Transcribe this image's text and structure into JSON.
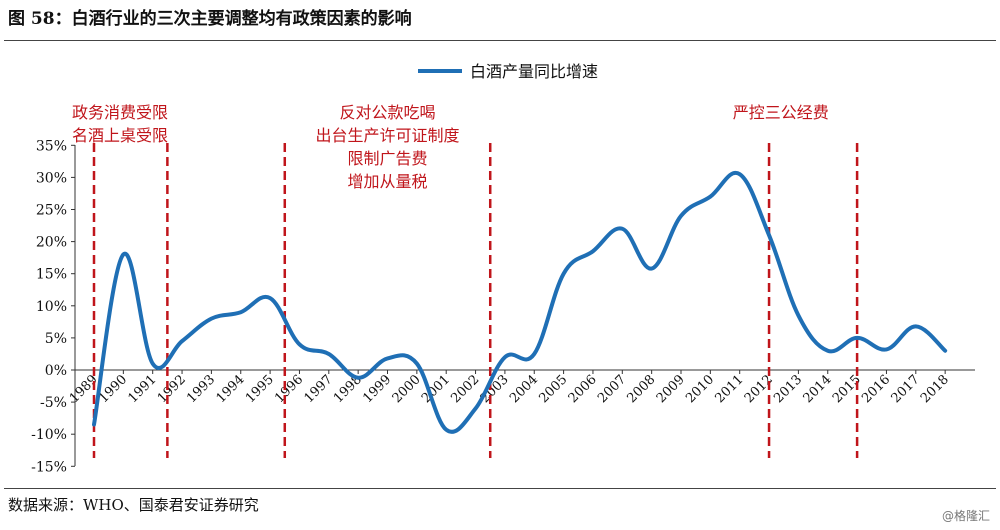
{
  "header": {
    "title": "图 58：白酒行业的三次主要调整均有政策因素的影响"
  },
  "footer": {
    "source": "数据来源：WHO、国泰君安证券研究",
    "watermark": "@格隆汇"
  },
  "colors": {
    "line": "#1f6fb5",
    "policy_line": "#c0151b",
    "annotation": "#c0151b",
    "text": "#111111"
  },
  "chart_data": {
    "type": "line",
    "title": "",
    "xlabel": "",
    "ylabel": "",
    "ylim": [
      -0.15,
      0.35
    ],
    "y_ticks": [
      0.35,
      0.3,
      0.25,
      0.2,
      0.15,
      0.1,
      0.05,
      0.0,
      -0.05,
      -0.1,
      -0.15
    ],
    "y_tick_labels": [
      "35%",
      "30%",
      "25%",
      "20%",
      "15%",
      "10%",
      "5%",
      "0%",
      "-5%",
      "-10%",
      "-15%"
    ],
    "categories": [
      "1989",
      "1990",
      "1991",
      "1992",
      "1993",
      "1994",
      "1995",
      "1996",
      "1997",
      "1998",
      "1999",
      "2000",
      "2001",
      "2002",
      "2003",
      "2004",
      "2005",
      "2006",
      "2007",
      "2008",
      "2009",
      "2010",
      "2011",
      "2012",
      "2013",
      "2014",
      "2015",
      "2016",
      "2017",
      "2018"
    ],
    "series": [
      {
        "name": "白酒产量同比增速",
        "values": [
          -0.085,
          0.18,
          0.01,
          0.045,
          0.08,
          0.09,
          0.112,
          0.04,
          0.025,
          -0.012,
          0.018,
          0.01,
          -0.093,
          -0.06,
          0.02,
          0.025,
          0.15,
          0.185,
          0.22,
          0.158,
          0.24,
          0.27,
          0.305,
          0.21,
          0.085,
          0.03,
          0.05,
          0.032,
          0.068,
          0.03
        ]
      }
    ],
    "legend": {
      "position": "top-center"
    },
    "policy_lines": [
      {
        "year": 1989,
        "annotation": []
      },
      {
        "year": 1991.5,
        "annotation": []
      },
      {
        "year": 1995.5,
        "annotation": []
      },
      {
        "year": 2002.5,
        "annotation": []
      },
      {
        "year": 2012,
        "annotation": []
      },
      {
        "year": 2015,
        "annotation": []
      }
    ],
    "annotations": [
      {
        "lines": [
          "政务消费受限",
          "名酒上桌受限"
        ],
        "align": "start",
        "anchor_year": 1989
      },
      {
        "lines": [
          "反对公款吃喝",
          "出台生产许可证制度",
          "限制广告费",
          "增加从量税"
        ],
        "align": "middle",
        "anchor_year": 1999
      },
      {
        "lines": [
          "严控三公经费"
        ],
        "align": "middle",
        "anchor_year": 2012.4
      }
    ]
  }
}
